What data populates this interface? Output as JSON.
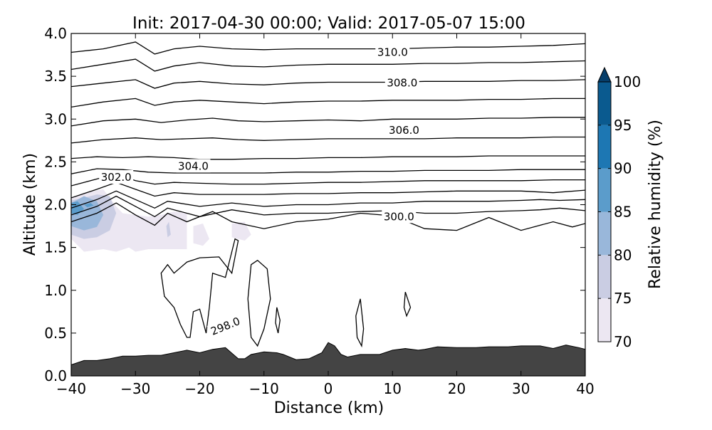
{
  "chart_data": {
    "type": "contour",
    "title": "Init: 2017-04-30 00:00; Valid: 2017-05-07 15:00",
    "xlabel": "Distance (km)",
    "ylabel": "Altitude (km)",
    "xlim": [
      -40,
      40
    ],
    "ylim": [
      0.0,
      4.0
    ],
    "x_ticks": [
      -40,
      -30,
      -20,
      -10,
      0,
      10,
      20,
      30,
      40
    ],
    "x_tick_labels": [
      "−40",
      "−30",
      "−20",
      "−10",
      "0",
      "10",
      "20",
      "30",
      "40"
    ],
    "y_ticks": [
      0.0,
      0.5,
      1.0,
      1.5,
      2.0,
      2.5,
      3.0,
      3.5,
      4.0
    ],
    "y_tick_labels": [
      "0.0",
      "0.5",
      "1.0",
      "1.5",
      "2.0",
      "2.5",
      "3.0",
      "3.5",
      "4.0"
    ],
    "colorbar": {
      "label": "Relative humidity (%)",
      "levels": [
        70,
        75,
        80,
        85,
        90,
        95,
        100
      ],
      "tick_labels": [
        "70",
        "75",
        "80",
        "85",
        "90",
        "95",
        "100"
      ],
      "colors": [
        "#ece7f2",
        "#cacde3",
        "#99b7da",
        "#5b9ccb",
        "#1d77b3",
        "#0a5a8f"
      ],
      "extend": "max",
      "extend_color": "#063e6a"
    },
    "contour_labels": [
      {
        "text": "310.0",
        "x": 10.0,
        "y": 3.78
      },
      {
        "text": "308.0",
        "x": 11.5,
        "y": 3.42
      },
      {
        "text": "306.0",
        "x": 11.8,
        "y": 2.87
      },
      {
        "text": "304.0",
        "x": -21.0,
        "y": 2.45
      },
      {
        "text": "302.0",
        "x": -33.0,
        "y": 2.32
      },
      {
        "text": "300.0",
        "x": 11.0,
        "y": 1.86
      },
      {
        "text": "298.0",
        "x": -16.0,
        "y": 0.58,
        "angle": -22
      }
    ],
    "theta_levels": [
      298,
      300,
      302,
      304,
      306,
      308,
      310
    ],
    "isentropes": [
      {
        "x": [
          -40,
          -36,
          -33,
          -30,
          -27,
          -25,
          -22,
          -18,
          -15,
          -10,
          -5,
          0,
          5,
          10,
          15,
          20,
          25,
          30,
          35,
          38,
          40
        ],
        "y": [
          1.8,
          1.9,
          2.02,
          1.88,
          1.76,
          1.9,
          1.8,
          1.92,
          1.8,
          1.72,
          1.8,
          1.83,
          1.9,
          1.87,
          1.72,
          1.7,
          1.85,
          1.7,
          1.8,
          1.74,
          1.78
        ]
      },
      {
        "x": [
          -40,
          -36,
          -33,
          -30,
          -27,
          -25,
          -20,
          -15,
          -10,
          -5,
          0,
          5,
          10,
          15,
          20,
          25,
          30,
          33,
          36,
          40
        ],
        "y": [
          1.88,
          1.98,
          2.1,
          1.98,
          1.86,
          1.96,
          1.86,
          1.94,
          1.88,
          1.9,
          1.9,
          1.92,
          1.93,
          1.9,
          1.9,
          1.92,
          1.93,
          1.94,
          1.96,
          1.93
        ]
      },
      {
        "x": [
          -40,
          -36,
          -33,
          -30,
          -27,
          -25,
          -20,
          -15,
          -10,
          -5,
          0,
          5,
          10,
          15,
          20,
          25,
          30,
          33,
          36,
          40
        ],
        "y": [
          1.96,
          2.06,
          2.16,
          2.06,
          1.96,
          2.04,
          1.98,
          2.02,
          1.98,
          2.0,
          2.0,
          2.02,
          2.02,
          2.04,
          2.04,
          2.04,
          2.05,
          2.06,
          2.05,
          2.06
        ]
      },
      {
        "x": [
          -40,
          -36,
          -33,
          -30,
          -27,
          -24,
          -20,
          -15,
          -10,
          -5,
          0,
          5,
          10,
          15,
          20,
          25,
          30,
          35,
          40
        ],
        "y": [
          2.08,
          2.18,
          2.26,
          2.18,
          2.1,
          2.14,
          2.12,
          2.12,
          2.12,
          2.13,
          2.13,
          2.14,
          2.14,
          2.15,
          2.16,
          2.16,
          2.16,
          2.14,
          2.17
        ]
      },
      {
        "x": [
          -40,
          -36,
          -33,
          -30,
          -27,
          -24,
          -20,
          -15,
          -10,
          -5,
          0,
          5,
          10,
          15,
          20,
          25,
          30,
          35,
          40
        ],
        "y": [
          2.22,
          2.3,
          2.36,
          2.28,
          2.24,
          2.26,
          2.25,
          2.24,
          2.24,
          2.25,
          2.26,
          2.26,
          2.27,
          2.28,
          2.28,
          2.28,
          2.28,
          2.29,
          2.29
        ]
      },
      {
        "x": [
          -40,
          -36,
          -32,
          -28,
          -24,
          -20,
          -15,
          -10,
          -5,
          0,
          5,
          10,
          15,
          20,
          25,
          30,
          35,
          40
        ],
        "y": [
          2.36,
          2.42,
          2.41,
          2.38,
          2.37,
          2.37,
          2.37,
          2.37,
          2.38,
          2.38,
          2.39,
          2.39,
          2.4,
          2.4,
          2.4,
          2.41,
          2.41,
          2.41
        ]
      },
      {
        "x": [
          -40,
          -36,
          -32,
          -28,
          -24,
          -20,
          -15,
          -10,
          -5,
          0,
          5,
          10,
          15,
          20,
          25,
          30,
          35,
          40
        ],
        "y": [
          2.54,
          2.56,
          2.55,
          2.56,
          2.55,
          2.53,
          2.53,
          2.54,
          2.54,
          2.55,
          2.55,
          2.56,
          2.56,
          2.56,
          2.57,
          2.57,
          2.57,
          2.57
        ]
      },
      {
        "x": [
          -40,
          -35,
          -30,
          -26,
          -22,
          -18,
          -14,
          -10,
          -5,
          0,
          5,
          10,
          15,
          20,
          25,
          30,
          35,
          40
        ],
        "y": [
          2.72,
          2.76,
          2.78,
          2.76,
          2.77,
          2.78,
          2.76,
          2.75,
          2.76,
          2.77,
          2.77,
          2.77,
          2.77,
          2.78,
          2.78,
          2.78,
          2.79,
          2.79
        ]
      },
      {
        "x": [
          -40,
          -35,
          -30,
          -26,
          -22,
          -18,
          -14,
          -10,
          -5,
          0,
          5,
          10,
          15,
          20,
          25,
          30,
          35,
          40
        ],
        "y": [
          2.92,
          2.98,
          3.0,
          2.96,
          2.99,
          3.01,
          2.98,
          2.97,
          2.98,
          2.99,
          2.98,
          3.0,
          3.0,
          3.0,
          3.01,
          3.01,
          3.02,
          3.02
        ]
      },
      {
        "x": [
          -40,
          -35,
          -30,
          -27,
          -24,
          -20,
          -15,
          -10,
          -5,
          0,
          5,
          10,
          15,
          20,
          25,
          30,
          35,
          40
        ],
        "y": [
          3.14,
          3.2,
          3.24,
          3.16,
          3.2,
          3.22,
          3.2,
          3.18,
          3.2,
          3.21,
          3.21,
          3.22,
          3.22,
          3.22,
          3.23,
          3.23,
          3.24,
          3.24
        ]
      },
      {
        "x": [
          -40,
          -35,
          -30,
          -27,
          -24,
          -20,
          -15,
          -10,
          -5,
          0,
          5,
          10,
          15,
          20,
          25,
          30,
          35,
          40
        ],
        "y": [
          3.38,
          3.42,
          3.46,
          3.36,
          3.42,
          3.44,
          3.41,
          3.4,
          3.42,
          3.43,
          3.43,
          3.43,
          3.44,
          3.44,
          3.44,
          3.45,
          3.45,
          3.46
        ]
      },
      {
        "x": [
          -40,
          -35,
          -30,
          -27,
          -24,
          -20,
          -15,
          -10,
          -5,
          0,
          5,
          10,
          15,
          20,
          25,
          30,
          35,
          40
        ],
        "y": [
          3.58,
          3.64,
          3.7,
          3.56,
          3.62,
          3.66,
          3.62,
          3.61,
          3.63,
          3.64,
          3.64,
          3.64,
          3.65,
          3.65,
          3.66,
          3.66,
          3.67,
          3.68
        ]
      },
      {
        "x": [
          -40,
          -35,
          -30,
          -27,
          -24,
          -20,
          -15,
          -10,
          -5,
          0,
          5,
          10,
          15,
          20,
          25,
          30,
          35,
          40
        ],
        "y": [
          3.78,
          3.82,
          3.9,
          3.76,
          3.82,
          3.85,
          3.82,
          3.81,
          3.82,
          3.82,
          3.82,
          3.82,
          3.83,
          3.84,
          3.84,
          3.85,
          3.86,
          3.88
        ]
      }
    ],
    "closed_contours": [
      {
        "level": 298,
        "x": [
          -26,
          -25,
          -24,
          -22,
          -20,
          -17,
          -15,
          -14,
          -14.5,
          -16,
          -18,
          -18.5,
          -19,
          -20,
          -21,
          -21.5,
          -22,
          -23,
          -24,
          -25.5,
          -26
        ],
        "y": [
          1.2,
          1.3,
          1.2,
          1.33,
          1.38,
          1.39,
          1.2,
          1.58,
          1.6,
          1.15,
          1.2,
          0.8,
          0.5,
          0.78,
          0.75,
          0.45,
          0.45,
          0.6,
          0.8,
          0.93,
          1.2
        ]
      },
      {
        "level": 298,
        "x": [
          -12,
          -11,
          -9.5,
          -9,
          -10,
          -11,
          -12,
          -12.5,
          -12
        ],
        "y": [
          1.3,
          1.35,
          1.25,
          0.9,
          0.55,
          0.35,
          0.45,
          0.9,
          1.3
        ]
      },
      {
        "level": 298,
        "x": [
          -8,
          -7.5,
          -7.8,
          -8.2,
          -8
        ],
        "y": [
          0.8,
          0.65,
          0.5,
          0.62,
          0.8
        ]
      },
      {
        "level": 298,
        "x": [
          5,
          5.5,
          5.2,
          4.5,
          4.3,
          5
        ],
        "y": [
          0.9,
          0.55,
          0.35,
          0.45,
          0.7,
          0.9
        ]
      },
      {
        "level": 298,
        "x": [
          12,
          12.8,
          12.2,
          11.8,
          12
        ],
        "y": [
          0.98,
          0.8,
          0.7,
          0.8,
          0.98
        ]
      }
    ],
    "rh_regions": [
      {
        "level": 70,
        "x": [
          -40,
          -38,
          -35,
          -33,
          -31,
          -30,
          -28,
          -26,
          -24,
          -22,
          -22,
          -24,
          -26,
          -28,
          -30,
          -32,
          -33,
          -35,
          -38,
          -40
        ],
        "y": [
          1.6,
          1.45,
          1.48,
          1.45,
          1.5,
          1.45,
          1.48,
          1.48,
          1.48,
          1.48,
          1.9,
          1.92,
          1.88,
          1.86,
          1.88,
          1.9,
          1.98,
          2.18,
          2.14,
          2.08
        ]
      },
      {
        "level": 70,
        "x": [
          -21,
          -19.5,
          -18.5,
          -19.5,
          -21
        ],
        "y": [
          1.55,
          1.52,
          1.6,
          1.78,
          1.75
        ]
      },
      {
        "level": 70,
        "x": [
          -15,
          -13,
          -12,
          -13,
          -15
        ],
        "y": [
          1.62,
          1.58,
          1.65,
          1.8,
          1.78
        ]
      },
      {
        "level": 75,
        "x": [
          -40,
          -38,
          -36,
          -34,
          -33,
          -34,
          -36,
          -38,
          -40
        ],
        "y": [
          1.65,
          1.6,
          1.62,
          1.7,
          1.9,
          2.1,
          2.12,
          2.08,
          2.05
        ]
      },
      {
        "level": 75,
        "x": [
          -25,
          -24.5,
          -24.8,
          -25.2,
          -25
        ],
        "y": [
          1.62,
          1.65,
          1.8,
          1.75,
          1.62
        ]
      },
      {
        "level": 80,
        "x": [
          -40,
          -38,
          -36,
          -35,
          -36,
          -38,
          -40
        ],
        "y": [
          1.75,
          1.7,
          1.74,
          1.88,
          2.04,
          2.1,
          2.02
        ]
      },
      {
        "level": 85,
        "x": [
          -40,
          -39,
          -38,
          -39,
          -40
        ],
        "y": [
          1.9,
          1.88,
          1.95,
          2.04,
          2.02
        ]
      },
      {
        "level": 85,
        "x": [
          -37.5,
          -36.5,
          -37,
          -38
        ],
        "y": [
          1.97,
          1.99,
          2.02,
          2.0
        ]
      }
    ],
    "terrain": {
      "x": [
        -40,
        -38,
        -36,
        -34,
        -32,
        -30,
        -28,
        -26,
        -24,
        -22,
        -20,
        -18,
        -16,
        -14,
        -13,
        -12,
        -10,
        -8,
        -7,
        -5,
        -3,
        -1,
        0,
        1,
        2,
        3,
        5,
        8,
        10,
        12,
        14,
        15,
        17,
        20,
        23,
        25,
        28,
        30,
        33,
        35,
        37,
        39,
        40
      ],
      "y": [
        0.13,
        0.18,
        0.18,
        0.2,
        0.23,
        0.23,
        0.24,
        0.24,
        0.27,
        0.3,
        0.27,
        0.31,
        0.33,
        0.2,
        0.2,
        0.25,
        0.28,
        0.27,
        0.25,
        0.19,
        0.2,
        0.27,
        0.39,
        0.35,
        0.25,
        0.22,
        0.25,
        0.25,
        0.3,
        0.32,
        0.3,
        0.31,
        0.34,
        0.33,
        0.33,
        0.34,
        0.34,
        0.35,
        0.35,
        0.32,
        0.36,
        0.33,
        0.31
      ],
      "color": "#444444"
    }
  }
}
